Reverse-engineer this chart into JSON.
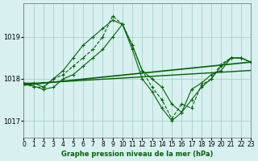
{
  "background_color": "#d8f0f0",
  "grid_color": "#a0c8c8",
  "line_color_main": "#006400",
  "line_color_smooth": "#006400",
  "title": "Graphe pression niveau de la mer (hPa)",
  "xlim": [
    0,
    23
  ],
  "ylim": [
    1016.6,
    1019.8
  ],
  "yticks": [
    1017,
    1018,
    1019
  ],
  "xticks": [
    0,
    1,
    2,
    3,
    4,
    5,
    6,
    7,
    8,
    9,
    10,
    11,
    12,
    13,
    14,
    15,
    16,
    17,
    18,
    19,
    20,
    21,
    22,
    23
  ],
  "series1_x": [
    0,
    1,
    2,
    3,
    4,
    5,
    6,
    7,
    8,
    9,
    10,
    11,
    12,
    13,
    14,
    15,
    16,
    17,
    18,
    19,
    20,
    21,
    22,
    23
  ],
  "series1_y": [
    1017.9,
    1017.9,
    1017.8,
    1018.0,
    1018.2,
    1018.5,
    1018.8,
    1019.0,
    1019.2,
    1019.4,
    1019.3,
    1018.7,
    1018.0,
    1017.7,
    1017.3,
    1017.0,
    1017.2,
    1017.5,
    1017.8,
    1018.0,
    1018.3,
    1018.5,
    1018.5,
    1018.4
  ],
  "series2_x": [
    0,
    1,
    2,
    3,
    4,
    5,
    6,
    7,
    8,
    9,
    10,
    11,
    12,
    13,
    14,
    15,
    16,
    17,
    18,
    19,
    20,
    21,
    22,
    23
  ],
  "series2_y": [
    1017.9,
    1017.8,
    1017.8,
    1018.0,
    1018.1,
    1018.3,
    1018.5,
    1018.7,
    1019.0,
    1019.5,
    1019.3,
    1018.8,
    1018.2,
    1017.8,
    1017.5,
    1017.05,
    1017.4,
    1017.3,
    1017.85,
    1018.0,
    1018.35,
    1018.5,
    1018.5,
    1018.4
  ],
  "series3_x": [
    0,
    2,
    3,
    4,
    5,
    6,
    7,
    8,
    9,
    10,
    11,
    12,
    13,
    14,
    15,
    16,
    17,
    18,
    19,
    20,
    21,
    22,
    23
  ],
  "series3_y": [
    1017.9,
    1017.75,
    1017.8,
    1018.0,
    1018.1,
    1018.3,
    1018.5,
    1018.7,
    1019.0,
    1019.3,
    1018.8,
    1018.2,
    1018.0,
    1017.8,
    1017.4,
    1017.2,
    1017.75,
    1017.9,
    1018.1,
    1018.2,
    1018.5,
    1018.5,
    1018.4
  ],
  "trend_x": [
    0,
    23
  ],
  "trend_y": [
    1017.85,
    1018.4
  ]
}
